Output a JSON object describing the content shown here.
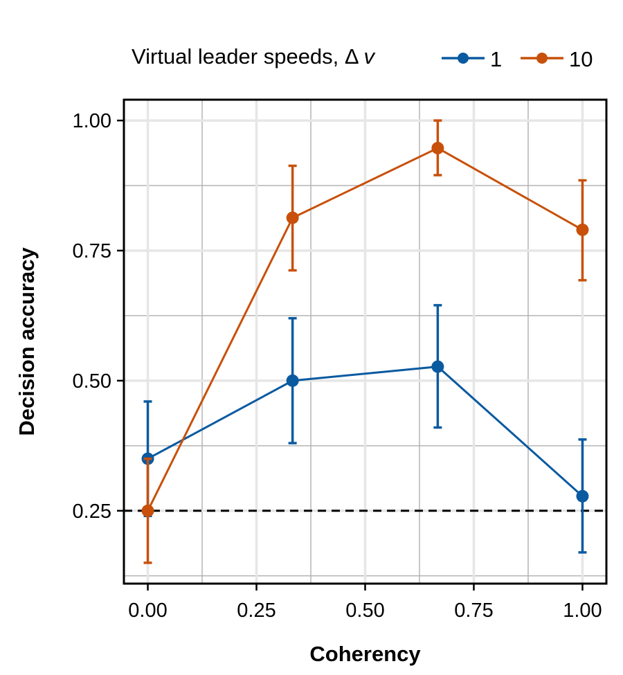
{
  "chart_data": {
    "type": "line",
    "legend": {
      "title": "Virtual leader speeds, Δ",
      "title_symbol": "v",
      "placement": "top"
    },
    "xlabel": "Coherency",
    "ylabel": "Decision accuracy",
    "xlim": [
      -0.055,
      1.055
    ],
    "ylim": [
      0.11,
      1.04
    ],
    "x_ticks": [
      {
        "value": 0.0,
        "label": "0.00"
      },
      {
        "value": 0.25,
        "label": "0.25"
      },
      {
        "value": 0.5,
        "label": "0.50"
      },
      {
        "value": 0.75,
        "label": "0.75"
      },
      {
        "value": 1.0,
        "label": "1.00"
      }
    ],
    "y_ticks": [
      {
        "value": 0.25,
        "label": "0.25"
      },
      {
        "value": 0.5,
        "label": "0.50"
      },
      {
        "value": 0.75,
        "label": "0.75"
      },
      {
        "value": 1.0,
        "label": "1.00"
      }
    ],
    "minor_x": [
      0.125,
      0.375,
      0.625,
      0.875
    ],
    "minor_y": [
      0.125,
      0.375,
      0.625,
      0.875
    ],
    "grid": true,
    "reference_line": {
      "y": 0.25,
      "style": "dashed",
      "color": "#000000"
    },
    "series": [
      {
        "name": "1",
        "color": "#0a5aa0",
        "points": [
          {
            "x": 0.0,
            "y": 0.35,
            "lo": 0.24,
            "hi": 0.46
          },
          {
            "x": 0.333,
            "y": 0.5,
            "lo": 0.38,
            "hi": 0.62
          },
          {
            "x": 0.667,
            "y": 0.527,
            "lo": 0.41,
            "hi": 0.645
          },
          {
            "x": 1.0,
            "y": 0.278,
            "lo": 0.17,
            "hi": 0.387
          }
        ]
      },
      {
        "name": "10",
        "color": "#c8500a",
        "points": [
          {
            "x": 0.0,
            "y": 0.25,
            "lo": 0.15,
            "hi": 0.35
          },
          {
            "x": 0.333,
            "y": 0.813,
            "lo": 0.712,
            "hi": 0.913
          },
          {
            "x": 0.667,
            "y": 0.947,
            "lo": 0.895,
            "hi": 1.0
          },
          {
            "x": 1.0,
            "y": 0.79,
            "lo": 0.693,
            "hi": 0.885
          }
        ]
      }
    ]
  }
}
